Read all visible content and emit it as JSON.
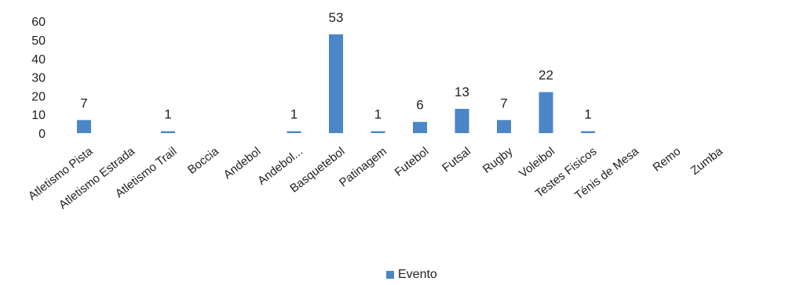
{
  "chart_data": {
    "type": "bar",
    "categories": [
      "Atletismo Pista",
      "Atletismo Estrada",
      "Atletismo Trail",
      "Boccia",
      "Andebol",
      "Andebol...",
      "Basquetebol",
      "Patinagem",
      "Futebol",
      "Futsal",
      "Rugby",
      "Voleibol",
      "Testes Fisicos",
      "Ténis de Mesa",
      "Remo",
      "Zumba"
    ],
    "series": [
      {
        "name": "Evento",
        "values": [
          7,
          0,
          1,
          0,
          0,
          1,
          53,
          1,
          6,
          13,
          7,
          22,
          1,
          0,
          0,
          0
        ]
      }
    ],
    "data_labels": [
      "7",
      "",
      "1",
      "",
      "",
      "1",
      "53",
      "1",
      "6",
      "13",
      "7",
      "22",
      "1",
      "",
      "",
      ""
    ],
    "yticks": [
      "0",
      "10",
      "20",
      "30",
      "40",
      "50",
      "60"
    ],
    "ylim": [
      0,
      60
    ],
    "grid": false,
    "legend_position": "bottom",
    "color": "#4a86c8"
  }
}
